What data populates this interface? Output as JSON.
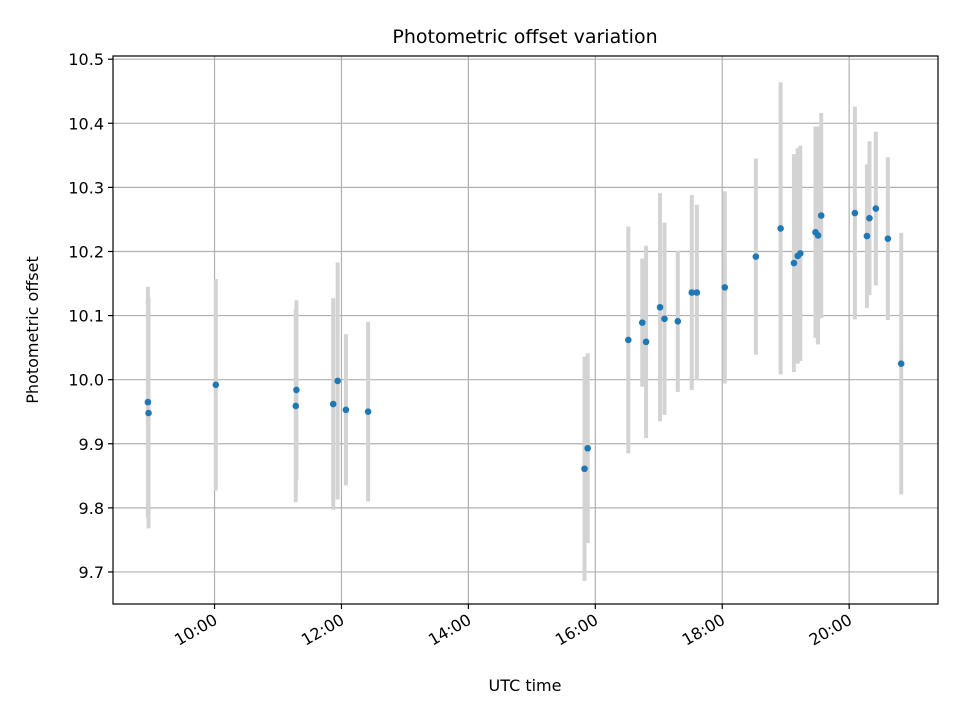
{
  "chart_data": {
    "type": "scatter",
    "title": "Photometric offset variation",
    "xlabel": "UTC time",
    "ylabel": "Photometric offset",
    "x_unit": "hours UTC",
    "xlim": [
      8.4,
      21.4
    ],
    "ylim": [
      9.65,
      10.505
    ],
    "xticks": [
      {
        "value": 10,
        "label": "10:00"
      },
      {
        "value": 12,
        "label": "12:00"
      },
      {
        "value": 14,
        "label": "14:00"
      },
      {
        "value": 16,
        "label": "16:00"
      },
      {
        "value": 18,
        "label": "18:00"
      },
      {
        "value": 20,
        "label": "20:00"
      }
    ],
    "yticks": [
      {
        "value": 9.7,
        "label": "9.7"
      },
      {
        "value": 9.8,
        "label": "9.8"
      },
      {
        "value": 9.9,
        "label": "9.9"
      },
      {
        "value": 10.0,
        "label": "10.0"
      },
      {
        "value": 10.1,
        "label": "10.1"
      },
      {
        "value": 10.2,
        "label": "10.2"
      },
      {
        "value": 10.3,
        "label": "10.3"
      },
      {
        "value": 10.4,
        "label": "10.4"
      },
      {
        "value": 10.5,
        "label": "10.5"
      }
    ],
    "grid": true,
    "colors": {
      "point": "#1f77b4",
      "errorbar": "#d3d3d3"
    },
    "points": [
      {
        "x": 8.95,
        "y": 9.965,
        "err": 0.18
      },
      {
        "x": 8.96,
        "y": 9.948,
        "err": 0.18
      },
      {
        "x": 10.02,
        "y": 9.992,
        "err": 0.165
      },
      {
        "x": 11.28,
        "y": 9.959,
        "err": 0.15
      },
      {
        "x": 11.29,
        "y": 9.984,
        "err": 0.14
      },
      {
        "x": 11.87,
        "y": 9.962,
        "err": 0.165
      },
      {
        "x": 11.94,
        "y": 9.998,
        "err": 0.185
      },
      {
        "x": 12.07,
        "y": 9.953,
        "err": 0.118
      },
      {
        "x": 12.42,
        "y": 9.95,
        "err": 0.14
      },
      {
        "x": 15.83,
        "y": 9.861,
        "err": 0.175
      },
      {
        "x": 15.88,
        "y": 9.893,
        "err": 0.148
      },
      {
        "x": 16.52,
        "y": 10.062,
        "err": 0.177
      },
      {
        "x": 16.74,
        "y": 10.089,
        "err": 0.1
      },
      {
        "x": 16.8,
        "y": 10.059,
        "err": 0.15
      },
      {
        "x": 17.02,
        "y": 10.113,
        "err": 0.178
      },
      {
        "x": 17.09,
        "y": 10.095,
        "err": 0.15
      },
      {
        "x": 17.3,
        "y": 10.091,
        "err": 0.11
      },
      {
        "x": 17.52,
        "y": 10.136,
        "err": 0.152
      },
      {
        "x": 17.6,
        "y": 10.136,
        "err": 0.137
      },
      {
        "x": 18.04,
        "y": 10.144,
        "err": 0.15
      },
      {
        "x": 18.53,
        "y": 10.192,
        "err": 0.153
      },
      {
        "x": 18.92,
        "y": 10.236,
        "err": 0.228
      },
      {
        "x": 19.13,
        "y": 10.182,
        "err": 0.17
      },
      {
        "x": 19.19,
        "y": 10.193,
        "err": 0.168
      },
      {
        "x": 19.23,
        "y": 10.197,
        "err": 0.168
      },
      {
        "x": 19.47,
        "y": 10.23,
        "err": 0.165
      },
      {
        "x": 19.51,
        "y": 10.225,
        "err": 0.17
      },
      {
        "x": 19.56,
        "y": 10.256,
        "err": 0.16
      },
      {
        "x": 20.09,
        "y": 10.26,
        "err": 0.166
      },
      {
        "x": 20.28,
        "y": 10.224,
        "err": 0.112
      },
      {
        "x": 20.32,
        "y": 10.252,
        "err": 0.12
      },
      {
        "x": 20.42,
        "y": 10.267,
        "err": 0.12
      },
      {
        "x": 20.61,
        "y": 10.22,
        "err": 0.127
      },
      {
        "x": 20.82,
        "y": 10.025,
        "err": 0.204
      }
    ]
  }
}
